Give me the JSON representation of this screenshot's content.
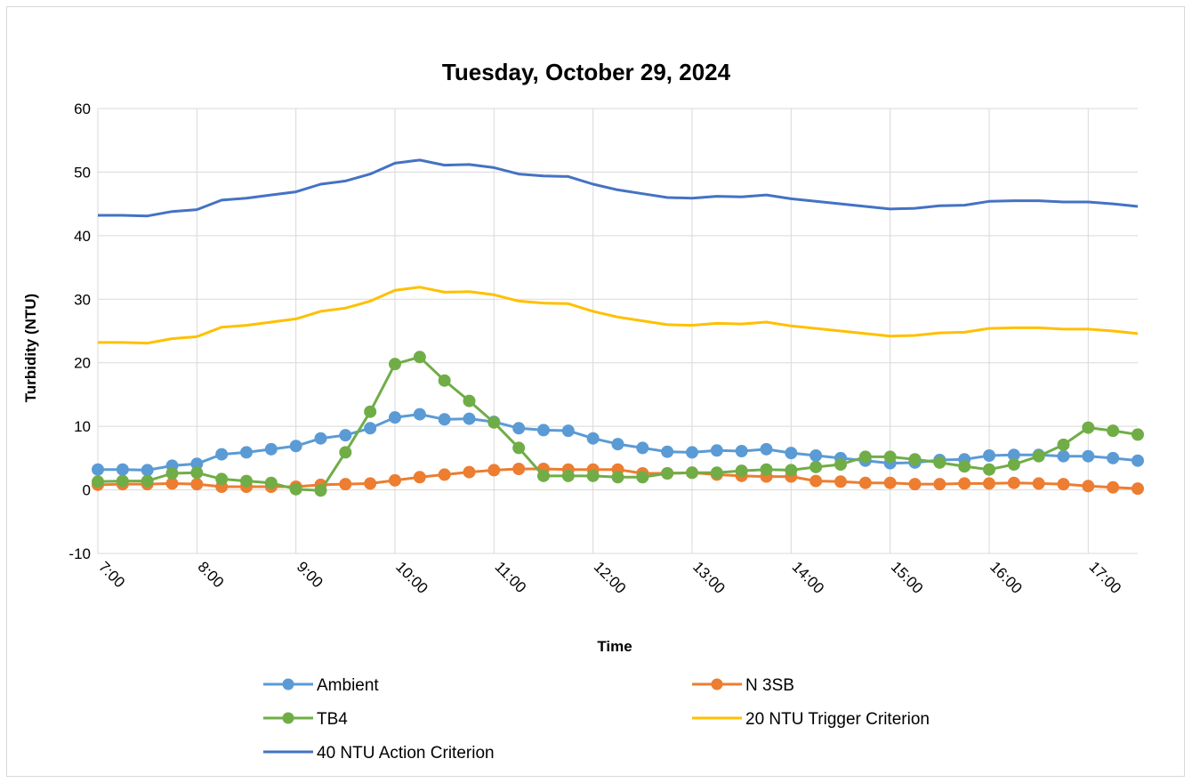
{
  "chart_data": {
    "type": "line",
    "title": "Tuesday, October 29, 2024",
    "xlabel": "Time",
    "ylabel": "Turbidity (NTU)",
    "ylim": [
      -10,
      60
    ],
    "yticks": [
      -10,
      0,
      10,
      20,
      30,
      40,
      50,
      60
    ],
    "x_ticks": [
      "7:00",
      "8:00",
      "9:00",
      "10:00",
      "11:00",
      "12:00",
      "13:00",
      "14:00",
      "15:00",
      "16:00",
      "17:00"
    ],
    "x": [
      "7:00",
      "7:15",
      "7:30",
      "7:45",
      "8:00",
      "8:15",
      "8:30",
      "8:45",
      "9:00",
      "9:15",
      "9:30",
      "9:45",
      "10:00",
      "10:15",
      "10:30",
      "10:45",
      "11:00",
      "11:15",
      "11:30",
      "11:45",
      "12:00",
      "12:15",
      "12:30",
      "12:45",
      "13:00",
      "13:15",
      "13:30",
      "13:45",
      "14:00",
      "14:15",
      "14:30",
      "14:45",
      "15:00",
      "15:15",
      "15:30",
      "15:45",
      "16:00",
      "16:15",
      "16:30",
      "16:45",
      "17:00",
      "17:15",
      "17:30"
    ],
    "grid": "vertical and horizontal",
    "legend_position": "bottom",
    "series": [
      {
        "name": "Ambient",
        "color": "#5b9bd5",
        "markers": true,
        "values": [
          3.2,
          3.2,
          3.1,
          3.8,
          4.1,
          5.6,
          5.9,
          6.4,
          6.9,
          8.1,
          8.6,
          9.7,
          11.4,
          11.9,
          11.1,
          11.2,
          10.7,
          9.7,
          9.4,
          9.3,
          8.1,
          7.2,
          6.6,
          6.0,
          5.9,
          6.2,
          6.1,
          6.4,
          5.8,
          5.4,
          5.0,
          4.6,
          4.2,
          4.3,
          4.7,
          4.8,
          5.4,
          5.5,
          5.5,
          5.3,
          5.3,
          5.0,
          4.6
        ]
      },
      {
        "name": "N 3SB",
        "color": "#ed7d31",
        "markers": true,
        "values": [
          0.8,
          0.9,
          0.9,
          1.0,
          0.9,
          0.5,
          0.5,
          0.5,
          0.5,
          0.8,
          0.9,
          1.0,
          1.5,
          2.0,
          2.4,
          2.8,
          3.1,
          3.3,
          3.3,
          3.2,
          3.2,
          3.2,
          2.6,
          2.6,
          2.7,
          2.4,
          2.2,
          2.1,
          2.1,
          1.4,
          1.3,
          1.1,
          1.1,
          0.9,
          0.9,
          1.0,
          1.0,
          1.1,
          1.0,
          0.9,
          0.6,
          0.4,
          0.2
        ]
      },
      {
        "name": "TB4",
        "color": "#70ad47",
        "markers": true,
        "values": [
          1.3,
          1.4,
          1.4,
          2.6,
          2.7,
          1.7,
          1.4,
          1.1,
          0.1,
          -0.1,
          5.9,
          12.3,
          19.8,
          20.9,
          17.2,
          14.0,
          10.6,
          6.6,
          2.2,
          2.2,
          2.2,
          2.0,
          2.0,
          2.6,
          2.7,
          2.7,
          3.0,
          3.2,
          3.1,
          3.6,
          4.0,
          5.2,
          5.2,
          4.8,
          4.3,
          3.7,
          3.2,
          4.0,
          5.3,
          7.1,
          9.8,
          9.3,
          8.7
        ]
      },
      {
        "name": "20 NTU Trigger Criterion",
        "color": "#ffc000",
        "markers": false,
        "values": [
          23.2,
          23.2,
          23.1,
          23.8,
          24.1,
          25.6,
          25.9,
          26.4,
          26.9,
          28.1,
          28.6,
          29.7,
          31.4,
          31.9,
          31.1,
          31.2,
          30.7,
          29.7,
          29.4,
          29.3,
          28.1,
          27.2,
          26.6,
          26.0,
          25.9,
          26.2,
          26.1,
          26.4,
          25.8,
          25.4,
          25.0,
          24.6,
          24.2,
          24.3,
          24.7,
          24.8,
          25.4,
          25.5,
          25.5,
          25.3,
          25.3,
          25.0,
          24.6
        ]
      },
      {
        "name": "40 NTU Action Criterion",
        "color": "#4472c4",
        "markers": false,
        "values": [
          43.2,
          43.2,
          43.1,
          43.8,
          44.1,
          45.6,
          45.9,
          46.4,
          46.9,
          48.1,
          48.6,
          49.7,
          51.4,
          51.9,
          51.1,
          51.2,
          50.7,
          49.7,
          49.4,
          49.3,
          48.1,
          47.2,
          46.6,
          46.0,
          45.9,
          46.2,
          46.1,
          46.4,
          45.8,
          45.4,
          45.0,
          44.6,
          44.2,
          44.3,
          44.7,
          44.8,
          45.4,
          45.5,
          45.5,
          45.3,
          45.3,
          45.0,
          44.6
        ]
      }
    ]
  }
}
